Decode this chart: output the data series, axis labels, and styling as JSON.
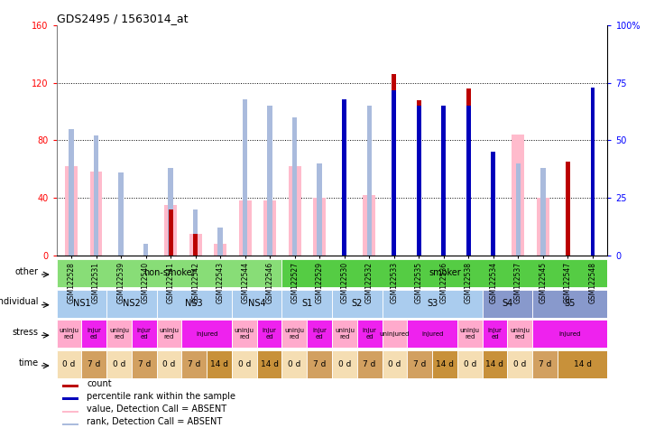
{
  "title": "GDS2495 / 1563014_at",
  "samples": [
    "GSM122528",
    "GSM122531",
    "GSM122539",
    "GSM122540",
    "GSM122541",
    "GSM122542",
    "GSM122543",
    "GSM122544",
    "GSM122546",
    "GSM122527",
    "GSM122529",
    "GSM122530",
    "GSM122532",
    "GSM122533",
    "GSM122535",
    "GSM122536",
    "GSM122538",
    "GSM122534",
    "GSM122537",
    "GSM122545",
    "GSM122547",
    "GSM122548"
  ],
  "count_values": [
    0,
    0,
    0,
    0,
    32,
    15,
    0,
    0,
    0,
    0,
    0,
    88,
    0,
    126,
    108,
    84,
    116,
    0,
    0,
    0,
    65,
    114
  ],
  "rank_values": [
    0,
    0,
    0,
    0,
    0,
    0,
    0,
    0,
    0,
    0,
    0,
    68,
    0,
    72,
    65,
    65,
    65,
    45,
    0,
    0,
    0,
    73
  ],
  "pink_count_values": [
    62,
    58,
    0,
    0,
    35,
    15,
    8,
    38,
    38,
    62,
    40,
    0,
    42,
    0,
    0,
    0,
    0,
    0,
    84,
    40,
    0,
    0
  ],
  "light_blue_rank_values": [
    55,
    52,
    36,
    5,
    38,
    20,
    12,
    68,
    65,
    60,
    40,
    0,
    65,
    0,
    0,
    0,
    0,
    0,
    40,
    38,
    0,
    0
  ],
  "ylim": [
    0,
    160
  ],
  "yticks": [
    0,
    40,
    80,
    120,
    160
  ],
  "ytick_labels": [
    "0",
    "40",
    "80",
    "120",
    "160"
  ],
  "y2ticks": [
    0,
    25,
    50,
    75,
    100
  ],
  "y2tick_labels": [
    "0",
    "25",
    "50",
    "75",
    "100%"
  ],
  "bar_color_dark_red": "#bb0000",
  "bar_color_blue": "#0000bb",
  "bar_color_pink": "#ffbbcc",
  "bar_color_light_blue": "#aabbdd",
  "other_segs": [
    {
      "start": 0,
      "end": 8,
      "label": "non-smoker",
      "color": "#88dd77"
    },
    {
      "start": 9,
      "end": 21,
      "label": "smoker",
      "color": "#55cc44"
    }
  ],
  "indiv_segs": [
    {
      "label": "NS1",
      "start": 0,
      "end": 1,
      "color": "#aaccee"
    },
    {
      "label": "NS2",
      "start": 2,
      "end": 3,
      "color": "#aaccee"
    },
    {
      "label": "NS3",
      "start": 4,
      "end": 6,
      "color": "#aaccee"
    },
    {
      "label": "NS4",
      "start": 7,
      "end": 8,
      "color": "#aaccee"
    },
    {
      "label": "S1",
      "start": 9,
      "end": 10,
      "color": "#aaccee"
    },
    {
      "label": "S2",
      "start": 11,
      "end": 12,
      "color": "#aaccee"
    },
    {
      "label": "S3",
      "start": 13,
      "end": 16,
      "color": "#aaccee"
    },
    {
      "label": "S4",
      "start": 17,
      "end": 18,
      "color": "#8899cc"
    },
    {
      "label": "S5",
      "start": 19,
      "end": 21,
      "color": "#8899cc"
    }
  ],
  "stress_segs": [
    {
      "label": "uninju\nred",
      "start": 0,
      "end": 0,
      "color": "#ffaacc"
    },
    {
      "label": "injur\ned",
      "start": 1,
      "end": 1,
      "color": "#ee22ee"
    },
    {
      "label": "uninju\nred",
      "start": 2,
      "end": 2,
      "color": "#ffaacc"
    },
    {
      "label": "injur\ned",
      "start": 3,
      "end": 3,
      "color": "#ee22ee"
    },
    {
      "label": "uninju\nred",
      "start": 4,
      "end": 4,
      "color": "#ffaacc"
    },
    {
      "label": "injured",
      "start": 5,
      "end": 6,
      "color": "#ee22ee"
    },
    {
      "label": "uninju\nred",
      "start": 7,
      "end": 7,
      "color": "#ffaacc"
    },
    {
      "label": "injur\ned",
      "start": 8,
      "end": 8,
      "color": "#ee22ee"
    },
    {
      "label": "uninju\nred",
      "start": 9,
      "end": 9,
      "color": "#ffaacc"
    },
    {
      "label": "injur\ned",
      "start": 10,
      "end": 10,
      "color": "#ee22ee"
    },
    {
      "label": "uninju\nred",
      "start": 11,
      "end": 11,
      "color": "#ffaacc"
    },
    {
      "label": "injur\ned",
      "start": 12,
      "end": 12,
      "color": "#ee22ee"
    },
    {
      "label": "uninjured",
      "start": 13,
      "end": 13,
      "color": "#ffaacc"
    },
    {
      "label": "injured",
      "start": 14,
      "end": 15,
      "color": "#ee22ee"
    },
    {
      "label": "uninju\nred",
      "start": 16,
      "end": 16,
      "color": "#ffaacc"
    },
    {
      "label": "injur\ned",
      "start": 17,
      "end": 17,
      "color": "#ee22ee"
    },
    {
      "label": "uninju\nred",
      "start": 18,
      "end": 18,
      "color": "#ffaacc"
    },
    {
      "label": "injured",
      "start": 19,
      "end": 21,
      "color": "#ee22ee"
    }
  ],
  "time_segs": [
    {
      "label": "0 d",
      "start": 0,
      "end": 0,
      "color": "#f5deb3"
    },
    {
      "label": "7 d",
      "start": 1,
      "end": 1,
      "color": "#d2a060"
    },
    {
      "label": "0 d",
      "start": 2,
      "end": 2,
      "color": "#f5deb3"
    },
    {
      "label": "7 d",
      "start": 3,
      "end": 3,
      "color": "#d2a060"
    },
    {
      "label": "0 d",
      "start": 4,
      "end": 4,
      "color": "#f5deb3"
    },
    {
      "label": "7 d",
      "start": 5,
      "end": 5,
      "color": "#d2a060"
    },
    {
      "label": "14 d",
      "start": 6,
      "end": 6,
      "color": "#c8913a"
    },
    {
      "label": "0 d",
      "start": 7,
      "end": 7,
      "color": "#f5deb3"
    },
    {
      "label": "14 d",
      "start": 8,
      "end": 8,
      "color": "#c8913a"
    },
    {
      "label": "0 d",
      "start": 9,
      "end": 9,
      "color": "#f5deb3"
    },
    {
      "label": "7 d",
      "start": 10,
      "end": 10,
      "color": "#d2a060"
    },
    {
      "label": "0 d",
      "start": 11,
      "end": 11,
      "color": "#f5deb3"
    },
    {
      "label": "7 d",
      "start": 12,
      "end": 12,
      "color": "#d2a060"
    },
    {
      "label": "0 d",
      "start": 13,
      "end": 13,
      "color": "#f5deb3"
    },
    {
      "label": "7 d",
      "start": 14,
      "end": 14,
      "color": "#d2a060"
    },
    {
      "label": "14 d",
      "start": 15,
      "end": 15,
      "color": "#c8913a"
    },
    {
      "label": "0 d",
      "start": 16,
      "end": 16,
      "color": "#f5deb3"
    },
    {
      "label": "14 d",
      "start": 17,
      "end": 17,
      "color": "#c8913a"
    },
    {
      "label": "0 d",
      "start": 18,
      "end": 18,
      "color": "#f5deb3"
    },
    {
      "label": "7 d",
      "start": 19,
      "end": 19,
      "color": "#d2a060"
    },
    {
      "label": "14 d",
      "start": 20,
      "end": 21,
      "color": "#c8913a"
    }
  ]
}
